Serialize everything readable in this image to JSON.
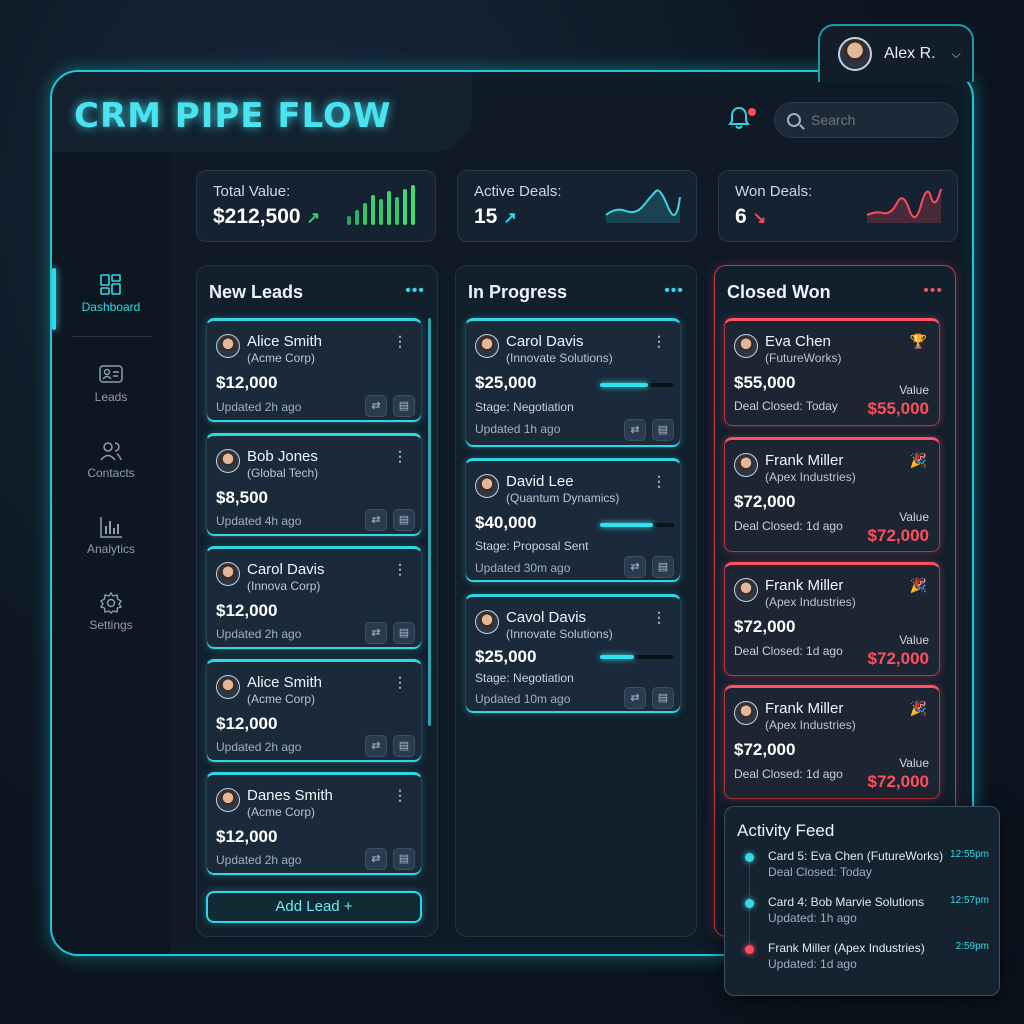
{
  "app": {
    "title": "CRM PIPE FLOW"
  },
  "user": {
    "name": "Alex R."
  },
  "search": {
    "placeholder": "Search"
  },
  "nav": [
    {
      "label": "Dashboard",
      "icon": "dashboard-icon"
    },
    {
      "label": "Leads",
      "icon": "leads-icon"
    },
    {
      "label": "Contacts",
      "icon": "contacts-icon"
    },
    {
      "label": "Analytics",
      "icon": "analytics-icon"
    },
    {
      "label": "Settings",
      "icon": "settings-icon"
    }
  ],
  "stats": {
    "total": {
      "label": "Total Value:",
      "value": "$212,500",
      "arrow": "↗"
    },
    "active": {
      "label": "Active Deals:",
      "value": "15",
      "arrow": "↗"
    },
    "won": {
      "label": "Won Deals:",
      "value": "6",
      "arrow": "↘"
    }
  },
  "columns": {
    "new_leads": {
      "title": "New Leads",
      "cards": [
        {
          "name": "Alice Smith",
          "company": "(Acme Corp)",
          "amount": "$12,000",
          "updated": "Updated 2h ago"
        },
        {
          "name": "Bob Jones",
          "company": "(Global Tech)",
          "amount": "$8,500",
          "updated": "Updated 4h ago"
        },
        {
          "name": "Carol Davis",
          "company": "(Innova Corp)",
          "amount": "$12,000",
          "updated": "Updated 2h ago"
        },
        {
          "name": "Alice Smith",
          "company": "(Acme Corp)",
          "amount": "$12,000",
          "updated": "Updated 2h ago"
        },
        {
          "name": "Danes Smith",
          "company": "(Acme Corp)",
          "amount": "$12,000",
          "updated": "Updated 2h ago"
        }
      ],
      "add_label": "Add Lead +"
    },
    "in_progress": {
      "title": "In Progress",
      "cards": [
        {
          "name": "Carol Davis",
          "company": "(Innovate Solutions)",
          "amount": "$25,000",
          "stage": "Stage: Negotiation",
          "updated": "Updated 1h ago",
          "progress": 0.65
        },
        {
          "name": "David Lee",
          "company": "(Quantum Dynamics)",
          "amount": "$40,000",
          "stage": "Stage: Proposal Sent",
          "updated": "Updated 30m ago",
          "progress": 0.72
        },
        {
          "name": "Cavol Davis",
          "company": "(Innovate Solutions)",
          "amount": "$25,000",
          "stage": "Stage: Negotiation",
          "updated": "Updated 10m ago",
          "progress": 0.46
        }
      ]
    },
    "closed_won": {
      "title": "Closed Won",
      "cards": [
        {
          "name": "Eva Chen",
          "company": "(FutureWorks)",
          "amount": "$55,000",
          "closed": "Deal Closed: Today",
          "value_label": "Value",
          "value": "$55,000"
        },
        {
          "name": "Frank Miller",
          "company": "(Apex Industries)",
          "amount": "$72,000",
          "closed": "Deal Closed: 1d ago",
          "value_label": "Value",
          "value": "$72,000"
        },
        {
          "name": "Frank Miller",
          "company": "(Apex Industries)",
          "amount": "$72,000",
          "closed": "Deal Closed: 1d ago",
          "value_label": "Value",
          "value": "$72,000"
        },
        {
          "name": "Frank Miller",
          "company": "(Apex Industries)",
          "amount": "$72,000",
          "closed": "Deal Closed: 1d ago",
          "value_label": "Value",
          "value": "$72,000"
        }
      ]
    }
  },
  "feed": {
    "title": "Activity Feed",
    "items": [
      {
        "title": "Card 5: Eva Chen (FutureWorks)",
        "sub": "Deal Closed: Today",
        "time": "12:55pm",
        "color": "#33d9e6"
      },
      {
        "title": "Card 4: Bob Marvie Solutions",
        "sub": "Updated: 1h ago",
        "time": "12:57pm",
        "color": "#33d9e6"
      },
      {
        "title": "Frank Miller (Apex Industries)",
        "sub": "Updated: 1d ago",
        "time": "2:59pm",
        "color": "#ff4b5c"
      }
    ]
  },
  "colors": {
    "accent": "#33d9e6",
    "danger": "#ff4b5c",
    "success": "#35d46a"
  }
}
